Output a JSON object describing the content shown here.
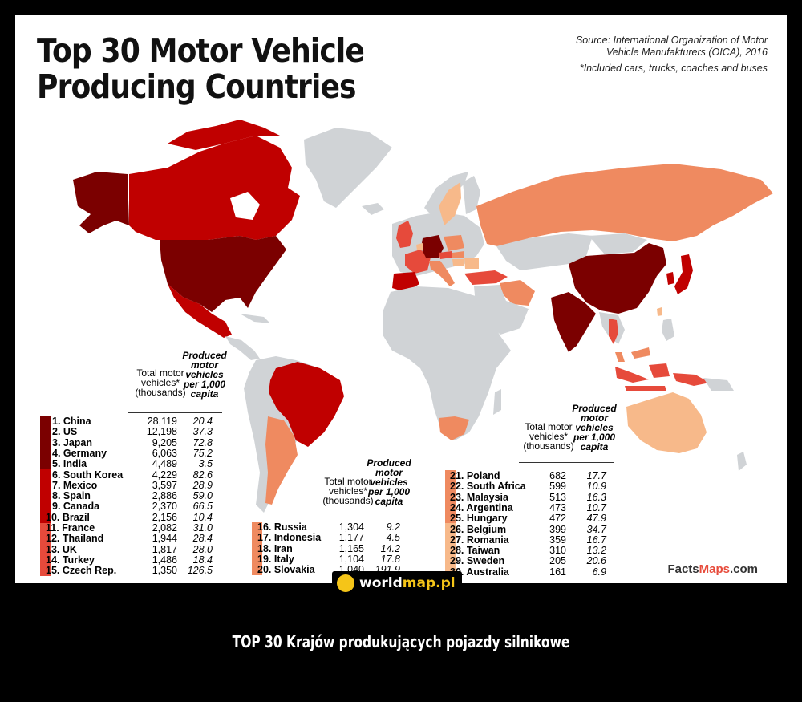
{
  "title": {
    "line1": "Top 30 Motor Vehicle",
    "line2": "Producing Countries"
  },
  "source": {
    "line1": "Source: International Organization of Motor",
    "line2": "Vehicle Manufakturers (OICA), 2016",
    "note": "*Included cars, trucks, coaches and buses"
  },
  "headers": {
    "total": "Total motor vehicles* (thousands)",
    "per_capita": "Produced motor vehicles per 1,000 capita"
  },
  "colors": {
    "tier1": "#7b0000",
    "tier2": "#c00000",
    "tier3": "#e64a3b",
    "tier4": "#ef8a60",
    "tier5": "#f7b98a",
    "land": "#d0d3d6",
    "ocean": "#ffffff"
  },
  "tables": [
    {
      "rows": [
        {
          "rank": "1.",
          "name": "China",
          "total": "28,119",
          "per_capita": "20.4"
        },
        {
          "rank": "2.",
          "name": "US",
          "total": "12,198",
          "per_capita": "37.3"
        },
        {
          "rank": "3.",
          "name": "Japan",
          "total": "9,205",
          "per_capita": "72.8"
        },
        {
          "rank": "4.",
          "name": "Germany",
          "total": "6,063",
          "per_capita": "75.2"
        },
        {
          "rank": "5.",
          "name": "India",
          "total": "4,489",
          "per_capita": "3.5"
        },
        {
          "rank": "6.",
          "name": "South Korea",
          "total": "4,229",
          "per_capita": "82.6"
        },
        {
          "rank": "7.",
          "name": "Mexico",
          "total": "3,597",
          "per_capita": "28.9"
        },
        {
          "rank": "8.",
          "name": "Spain",
          "total": "2,886",
          "per_capita": "59.0"
        },
        {
          "rank": "9.",
          "name": "Canada",
          "total": "2,370",
          "per_capita": "66.5"
        },
        {
          "rank": "10.",
          "name": "Brazil",
          "total": "2,156",
          "per_capita": "10.4"
        },
        {
          "rank": "11.",
          "name": "France",
          "total": "2,082",
          "per_capita": "31.0"
        },
        {
          "rank": "12.",
          "name": "Thailand",
          "total": "1,944",
          "per_capita": "28.4"
        },
        {
          "rank": "13.",
          "name": "UK",
          "total": "1,817",
          "per_capita": "28.0"
        },
        {
          "rank": "14.",
          "name": "Turkey",
          "total": "1,486",
          "per_capita": "18.4"
        },
        {
          "rank": "15.",
          "name": "Czech Rep.",
          "total": "1,350",
          "per_capita": "126.5"
        }
      ]
    },
    {
      "rows": [
        {
          "rank": "16.",
          "name": "Russia",
          "total": "1,304",
          "per_capita": "9.2"
        },
        {
          "rank": "17.",
          "name": "Indonesia",
          "total": "1,177",
          "per_capita": "4.5"
        },
        {
          "rank": "18.",
          "name": "Iran",
          "total": "1,165",
          "per_capita": "14.2"
        },
        {
          "rank": "19.",
          "name": "Italy",
          "total": "1,104",
          "per_capita": "17.8"
        },
        {
          "rank": "20.",
          "name": "Slovakia",
          "total": "1,040",
          "per_capita": "191.9"
        }
      ]
    },
    {
      "rows": [
        {
          "rank": "21.",
          "name": "Poland",
          "total": "682",
          "per_capita": "17.7"
        },
        {
          "rank": "22.",
          "name": "South Africa",
          "total": "599",
          "per_capita": "10.9"
        },
        {
          "rank": "23.",
          "name": "Malaysia",
          "total": "513",
          "per_capita": "16.3"
        },
        {
          "rank": "24.",
          "name": "Argentina",
          "total": "473",
          "per_capita": "10.7"
        },
        {
          "rank": "25.",
          "name": "Hungary",
          "total": "472",
          "per_capita": "47.9"
        },
        {
          "rank": "26.",
          "name": "Belgium",
          "total": "399",
          "per_capita": "34.7"
        },
        {
          "rank": "27.",
          "name": "Romania",
          "total": "359",
          "per_capita": "16.7"
        },
        {
          "rank": "28.",
          "name": "Taiwan",
          "total": "310",
          "per_capita": "13.2"
        },
        {
          "rank": "29.",
          "name": "Sweden",
          "total": "205",
          "per_capita": "20.6"
        },
        {
          "rank": "30.",
          "name": "Australia",
          "total": "161",
          "per_capita": "6.9"
        }
      ]
    }
  ],
  "brand": {
    "part1": "Facts",
    "part2": "Maps",
    "part3": ".com"
  },
  "watermark": {
    "part1": "world",
    "part2": "map.pl"
  },
  "caption": "TOP 30 Krajów produkujących pojazdy silnikowe"
}
